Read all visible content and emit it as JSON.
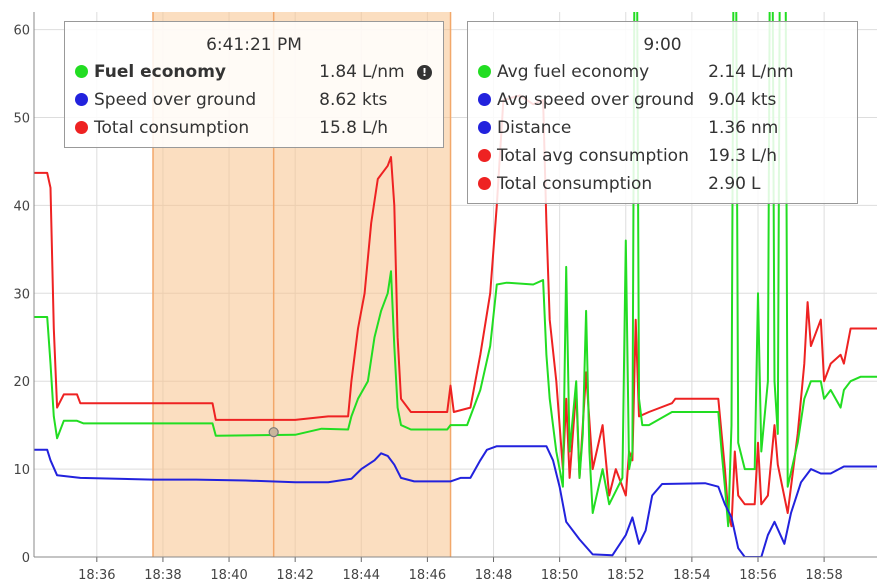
{
  "colors": {
    "fuel": "#22dd22",
    "speed": "#2222dd",
    "consumption": "#ee2222",
    "highlight": "#f8c28c",
    "grid": "#dddddd"
  },
  "tooltip_left": {
    "title": "6:41:21 PM",
    "rows": [
      {
        "label": "Fuel economy",
        "value": "1.84",
        "unit": "L/nm",
        "color": "#22dd22",
        "bold": true,
        "icon": "info-icon"
      },
      {
        "label": "Speed over ground",
        "value": "8.62",
        "unit": "kts",
        "color": "#2222dd"
      },
      {
        "label": "Total consumption",
        "value": "15.8",
        "unit": "L/h",
        "color": "#ee2222"
      }
    ]
  },
  "tooltip_right": {
    "title": "9:00",
    "rows": [
      {
        "label": "Avg fuel economy",
        "value": "2.14",
        "unit": "L/nm",
        "color": "#22dd22"
      },
      {
        "label": "Avg speed over ground",
        "value": "9.04",
        "unit": "kts",
        "color": "#2222dd"
      },
      {
        "label": "Distance",
        "value": "1.36",
        "unit": "nm",
        "color": "#2222dd"
      },
      {
        "label": "Total avg consumption",
        "value": "19.3",
        "unit": "L/h",
        "color": "#ee2222"
      },
      {
        "label": "Total consumption",
        "value": "2.90",
        "unit": "L",
        "color": "#ee2222"
      }
    ]
  },
  "chart_data": {
    "type": "line",
    "xlabel": "",
    "ylabel": "",
    "xlim": [
      34.1,
      59.6
    ],
    "ylim": [
      0,
      62
    ],
    "x_ticks": [
      36,
      38,
      40,
      42,
      44,
      46,
      48,
      50,
      52,
      54,
      56,
      58
    ],
    "x_tick_labels": [
      "18:36",
      "18:38",
      "18:40",
      "18:42",
      "18:44",
      "18:46",
      "18:48",
      "18:50",
      "18:52",
      "18:54",
      "18:56",
      "18:58"
    ],
    "y_ticks": [
      0,
      10,
      20,
      30,
      40,
      50,
      60
    ],
    "grid": true,
    "highlight_range": [
      37.7,
      46.7
    ],
    "cursor_x": 41.35,
    "marker_point": {
      "x": 41.35,
      "y": 14.2
    },
    "series": [
      {
        "key": "consumption",
        "color": "#ee2222",
        "points": [
          [
            34.1,
            43.7
          ],
          [
            34.5,
            43.7
          ],
          [
            34.6,
            42
          ],
          [
            34.7,
            26
          ],
          [
            34.8,
            17
          ],
          [
            35.0,
            18.5
          ],
          [
            35.4,
            18.5
          ],
          [
            35.5,
            17.5
          ],
          [
            39.5,
            17.5
          ],
          [
            39.6,
            15.6
          ],
          [
            42.0,
            15.6
          ],
          [
            43.0,
            16
          ],
          [
            43.6,
            16
          ],
          [
            43.7,
            20
          ],
          [
            43.9,
            26
          ],
          [
            44.1,
            30
          ],
          [
            44.3,
            38
          ],
          [
            44.5,
            43
          ],
          [
            44.8,
            44.5
          ],
          [
            44.9,
            45.5
          ],
          [
            45.0,
            40
          ],
          [
            45.1,
            25
          ],
          [
            45.2,
            18
          ],
          [
            45.5,
            16.5
          ],
          [
            46.6,
            16.5
          ],
          [
            46.7,
            19.5
          ],
          [
            46.8,
            16.5
          ],
          [
            47.3,
            17
          ],
          [
            47.6,
            23
          ],
          [
            47.9,
            30
          ],
          [
            48.1,
            40
          ],
          [
            48.3,
            52
          ],
          [
            48.8,
            52.5
          ],
          [
            49.2,
            51.5
          ],
          [
            49.5,
            52
          ],
          [
            49.6,
            38
          ],
          [
            49.7,
            27
          ],
          [
            49.9,
            20
          ],
          [
            50.1,
            10
          ],
          [
            50.2,
            18
          ],
          [
            50.3,
            9
          ],
          [
            50.5,
            19
          ],
          [
            50.6,
            9
          ],
          [
            50.8,
            21
          ],
          [
            51.0,
            10
          ],
          [
            51.3,
            15
          ],
          [
            51.5,
            7
          ],
          [
            51.7,
            10
          ],
          [
            52.0,
            7
          ],
          [
            52.1,
            12
          ],
          [
            52.2,
            11
          ],
          [
            52.3,
            27
          ],
          [
            52.4,
            16
          ],
          [
            52.7,
            16.5
          ],
          [
            53.4,
            17.5
          ],
          [
            53.5,
            18
          ],
          [
            54.8,
            18
          ],
          [
            54.9,
            14
          ],
          [
            55.0,
            10
          ],
          [
            55.1,
            5
          ],
          [
            55.2,
            3.5
          ],
          [
            55.3,
            12
          ],
          [
            55.4,
            7
          ],
          [
            55.6,
            6
          ],
          [
            55.9,
            6
          ],
          [
            56.0,
            13
          ],
          [
            56.1,
            6
          ],
          [
            56.3,
            7
          ],
          [
            56.5,
            15
          ],
          [
            56.6,
            10.5
          ],
          [
            56.9,
            5
          ],
          [
            57.2,
            14
          ],
          [
            57.4,
            22
          ],
          [
            57.5,
            29
          ],
          [
            57.6,
            24
          ],
          [
            57.9,
            27
          ],
          [
            58.0,
            20
          ],
          [
            58.2,
            22
          ],
          [
            58.5,
            23
          ],
          [
            58.6,
            22
          ],
          [
            58.8,
            26
          ],
          [
            59.1,
            26
          ],
          [
            59.6,
            26
          ]
        ]
      },
      {
        "key": "fuel",
        "color": "#22dd22",
        "points": [
          [
            34.1,
            27.3
          ],
          [
            34.5,
            27.3
          ],
          [
            34.6,
            22
          ],
          [
            34.7,
            16
          ],
          [
            34.8,
            13.5
          ],
          [
            35.0,
            15.5
          ],
          [
            35.4,
            15.5
          ],
          [
            35.6,
            15.2
          ],
          [
            39.5,
            15.2
          ],
          [
            39.6,
            13.8
          ],
          [
            42.0,
            13.9
          ],
          [
            42.8,
            14.6
          ],
          [
            43.6,
            14.5
          ],
          [
            43.7,
            16
          ],
          [
            43.9,
            18
          ],
          [
            44.2,
            20
          ],
          [
            44.4,
            25
          ],
          [
            44.6,
            28
          ],
          [
            44.8,
            30
          ],
          [
            44.9,
            32.5
          ],
          [
            45.0,
            24
          ],
          [
            45.1,
            17
          ],
          [
            45.2,
            15
          ],
          [
            45.5,
            14.5
          ],
          [
            46.6,
            14.5
          ],
          [
            46.7,
            15
          ],
          [
            47.2,
            15
          ],
          [
            47.6,
            19
          ],
          [
            47.9,
            24
          ],
          [
            48.1,
            31
          ],
          [
            48.4,
            31.2
          ],
          [
            49.2,
            31
          ],
          [
            49.5,
            31.5
          ],
          [
            49.6,
            23
          ],
          [
            49.7,
            18
          ],
          [
            49.9,
            12
          ],
          [
            50.1,
            8
          ],
          [
            50.2,
            33
          ],
          [
            50.3,
            12
          ],
          [
            50.5,
            20
          ],
          [
            50.6,
            9
          ],
          [
            50.7,
            14
          ],
          [
            50.8,
            28
          ],
          [
            50.9,
            12
          ],
          [
            51.0,
            5
          ],
          [
            51.3,
            10
          ],
          [
            51.5,
            6
          ],
          [
            51.9,
            9
          ],
          [
            52.0,
            36
          ],
          [
            52.1,
            10
          ],
          [
            52.2,
            12
          ],
          [
            52.3,
            100
          ],
          [
            52.4,
            18
          ],
          [
            52.5,
            15
          ],
          [
            52.7,
            15
          ],
          [
            53.4,
            16.5
          ],
          [
            53.5,
            16.5
          ],
          [
            54.8,
            16.5
          ],
          [
            54.9,
            12
          ],
          [
            55.0,
            8
          ],
          [
            55.1,
            3.5
          ],
          [
            55.2,
            15
          ],
          [
            55.3,
            100
          ],
          [
            55.4,
            13
          ],
          [
            55.6,
            10
          ],
          [
            55.9,
            10
          ],
          [
            56.0,
            30
          ],
          [
            56.1,
            12
          ],
          [
            56.3,
            20
          ],
          [
            56.4,
            100
          ],
          [
            56.5,
            20
          ],
          [
            56.6,
            14
          ],
          [
            56.7,
            100
          ],
          [
            56.8,
            100
          ],
          [
            56.9,
            8
          ],
          [
            57.2,
            13
          ],
          [
            57.4,
            18
          ],
          [
            57.6,
            20
          ],
          [
            57.9,
            20
          ],
          [
            58.0,
            18
          ],
          [
            58.2,
            19
          ],
          [
            58.5,
            17
          ],
          [
            58.6,
            19
          ],
          [
            58.8,
            20
          ],
          [
            59.1,
            20.5
          ],
          [
            59.6,
            20.5
          ]
        ]
      },
      {
        "key": "speed",
        "color": "#2222dd",
        "points": [
          [
            34.1,
            12.2
          ],
          [
            34.5,
            12.2
          ],
          [
            34.6,
            11
          ],
          [
            34.8,
            9.3
          ],
          [
            35.5,
            9
          ],
          [
            37.7,
            8.8
          ],
          [
            39.0,
            8.8
          ],
          [
            40.5,
            8.7
          ],
          [
            42.0,
            8.5
          ],
          [
            43.0,
            8.5
          ],
          [
            43.7,
            8.9
          ],
          [
            44.0,
            10
          ],
          [
            44.4,
            11
          ],
          [
            44.6,
            11.8
          ],
          [
            44.8,
            11.5
          ],
          [
            45.0,
            10.5
          ],
          [
            45.2,
            9
          ],
          [
            45.6,
            8.6
          ],
          [
            46.7,
            8.6
          ],
          [
            47.0,
            9
          ],
          [
            47.3,
            9
          ],
          [
            47.6,
            11
          ],
          [
            47.8,
            12.2
          ],
          [
            48.1,
            12.6
          ],
          [
            49.6,
            12.6
          ],
          [
            49.8,
            11
          ],
          [
            50.0,
            8
          ],
          [
            50.2,
            4
          ],
          [
            50.6,
            2
          ],
          [
            51.0,
            0.3
          ],
          [
            51.6,
            0.2
          ],
          [
            52.0,
            2.5
          ],
          [
            52.2,
            4.5
          ],
          [
            52.4,
            1.5
          ],
          [
            52.6,
            3
          ],
          [
            52.8,
            7
          ],
          [
            53.1,
            8.3
          ],
          [
            54.4,
            8.4
          ],
          [
            54.8,
            8
          ],
          [
            55.0,
            6
          ],
          [
            55.2,
            4.5
          ],
          [
            55.4,
            1
          ],
          [
            55.6,
            0
          ],
          [
            56.1,
            0
          ],
          [
            56.3,
            2.5
          ],
          [
            56.5,
            4
          ],
          [
            56.8,
            1.5
          ],
          [
            57.0,
            5
          ],
          [
            57.3,
            8.5
          ],
          [
            57.6,
            10
          ],
          [
            57.9,
            9.5
          ],
          [
            58.2,
            9.5
          ],
          [
            58.6,
            10.3
          ],
          [
            59.6,
            10.3
          ]
        ]
      }
    ]
  }
}
